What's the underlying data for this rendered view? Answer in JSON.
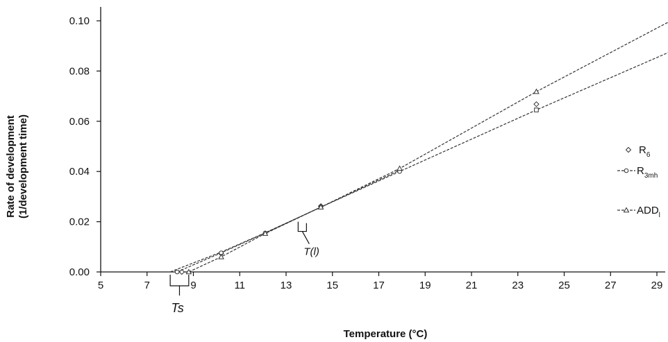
{
  "chart_data": {
    "type": "line",
    "xlabel": "Temperature (°C)",
    "ylabel_line1": "Rate of development",
    "ylabel_line2": "(1/development time)",
    "xlim": [
      5,
      29.6
    ],
    "ylim": [
      0,
      0.105
    ],
    "x_ticks": [
      5,
      7,
      9,
      11,
      13,
      15,
      17,
      19,
      21,
      23,
      25,
      27,
      29
    ],
    "y_ticks": [
      0.0,
      0.02,
      0.04,
      0.06,
      0.08,
      0.1
    ],
    "y_tick_labels": [
      "0.00",
      "0.02",
      "0.04",
      "0.06",
      "0.08",
      "0.10"
    ],
    "grid": false,
    "legend_position": "right",
    "series": [
      {
        "name_base": "R",
        "name_sub": "6",
        "marker": "diamond",
        "line": false,
        "x": [
          8.5,
          10.2,
          14.5,
          17.9,
          23.8,
          29.6
        ],
        "y": [
          0.0,
          0.0073,
          0.0262,
          0.0405,
          0.0668,
          0.0918
        ]
      },
      {
        "name_base": "R",
        "name_sub": "3mh",
        "marker": "circle",
        "line": true,
        "x": [
          8.3,
          10.2,
          12.1,
          14.5,
          17.9,
          23.8,
          29.6
        ],
        "y": [
          0.0,
          0.0076,
          0.0155,
          0.0258,
          0.04,
          0.0645,
          0.0878
        ]
      },
      {
        "name_base": "ADD",
        "name_sub": "l",
        "marker": "triangle",
        "line": true,
        "x": [
          8.8,
          10.2,
          12.1,
          14.5,
          17.9,
          23.8,
          29.6
        ],
        "y": [
          0.0,
          0.006,
          0.0153,
          0.0258,
          0.0412,
          0.0718,
          0.1
        ]
      }
    ],
    "extra_line": {
      "x": [
        8.0,
        10.2,
        12.1,
        14.5,
        17.9
      ],
      "y": [
        0.0,
        0.0079,
        0.0156,
        0.0258,
        0.0405
      ]
    },
    "annotations": [
      {
        "label": "T(l)",
        "x": 13.7,
        "y": -0.006
      },
      {
        "label": "Ts",
        "x": 8.4,
        "y": -0.0125
      }
    ]
  }
}
